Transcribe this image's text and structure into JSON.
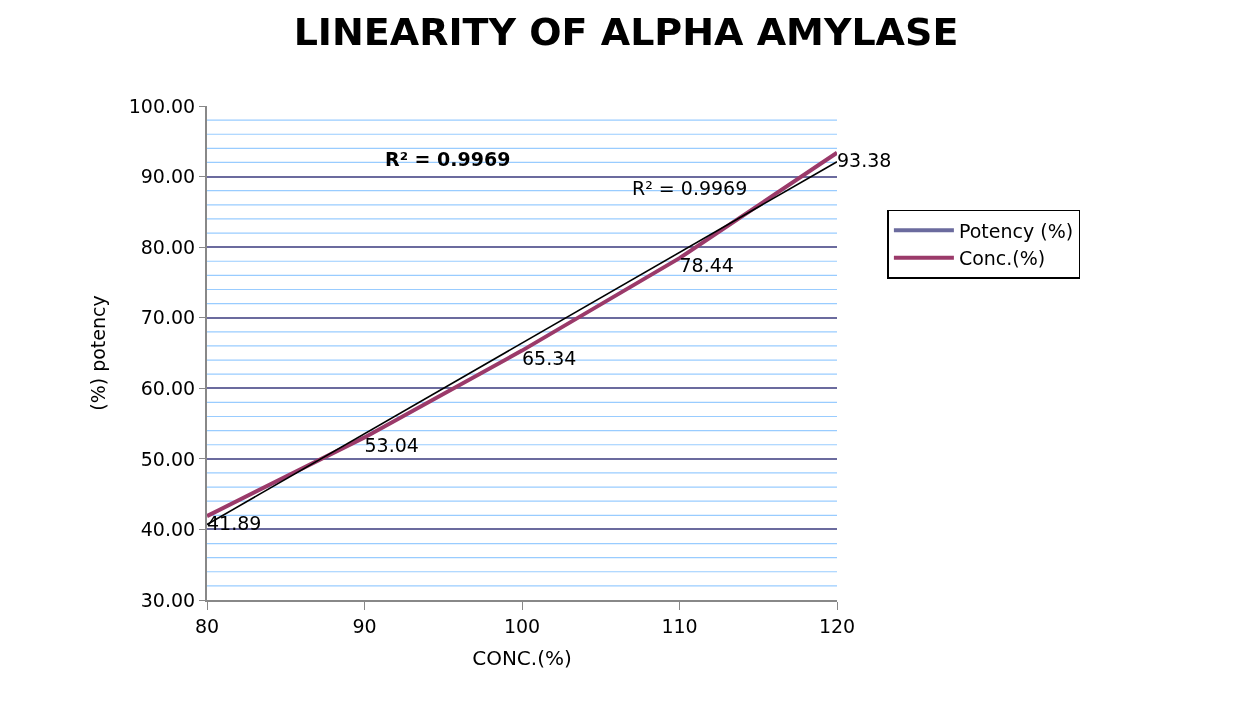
{
  "chart_data": {
    "type": "line",
    "title": "LINEARITY OF ALPHA AMYLASE",
    "xlabel": "CONC.(%)",
    "ylabel": "(%) potency",
    "x": [
      80,
      90,
      100,
      110,
      120
    ],
    "series": [
      {
        "name": "Potency (%)",
        "color": "#6b6b9e",
        "values": [
          null,
          null,
          null,
          null,
          null
        ]
      },
      {
        "name": "Conc.(%)",
        "color": "#9b3a6a",
        "values": [
          41.89,
          53.04,
          65.34,
          78.44,
          93.38
        ],
        "value_labels": [
          "41.89",
          "53.04",
          "65.34",
          "78.44",
          "93.38"
        ]
      },
      {
        "type": "line",
        "color": "#000000",
        "x": [
          80,
          120
        ],
        "values": [
          40.7,
          92.1
        ]
      }
    ],
    "annotations": [
      "R² = 0.9969",
      "R² = 0.9969"
    ],
    "xlim": [
      80,
      120
    ],
    "xticks": [
      80,
      90,
      100,
      110,
      120
    ],
    "ylim": [
      30,
      100
    ],
    "yticks": [
      {
        "value": 30,
        "label": "30.00"
      },
      {
        "value": 32,
        "label": null
      },
      {
        "value": 34,
        "label": null
      },
      {
        "value": 36,
        "label": null
      },
      {
        "value": 38,
        "label": null
      },
      {
        "value": 40,
        "label": "40.00"
      },
      {
        "value": 42,
        "label": null
      },
      {
        "value": 44,
        "label": null
      },
      {
        "value": 46,
        "label": null
      },
      {
        "value": 48,
        "label": null
      },
      {
        "value": 50,
        "label": "50.00"
      },
      {
        "value": 52,
        "label": null
      },
      {
        "value": 54,
        "label": null
      },
      {
        "value": 56,
        "label": null
      },
      {
        "value": 58,
        "label": null
      },
      {
        "value": 60,
        "label": "60.00"
      },
      {
        "value": 62,
        "label": null
      },
      {
        "value": 64,
        "label": null
      },
      {
        "value": 66,
        "label": null
      },
      {
        "value": 68,
        "label": null
      },
      {
        "value": 70,
        "label": "70.00"
      },
      {
        "value": 72,
        "label": null
      },
      {
        "value": 74,
        "label": null
      },
      {
        "value": 76,
        "label": null
      },
      {
        "value": 78,
        "label": null
      },
      {
        "value": 80,
        "label": "80.00"
      },
      {
        "value": 82,
        "label": null
      },
      {
        "value": 84,
        "label": null
      },
      {
        "value": 86,
        "label": null
      },
      {
        "value": 88,
        "label": null
      },
      {
        "value": 90,
        "label": "90.00"
      },
      {
        "value": 92,
        "label": null
      },
      {
        "value": 94,
        "label": null
      },
      {
        "value": 96,
        "label": null
      },
      {
        "value": 98,
        "label": null
      },
      {
        "value": 100,
        "label": "100.00"
      }
    ],
    "grid": "y",
    "legend": "right",
    "marker": "none",
    "line_style": "solid"
  }
}
